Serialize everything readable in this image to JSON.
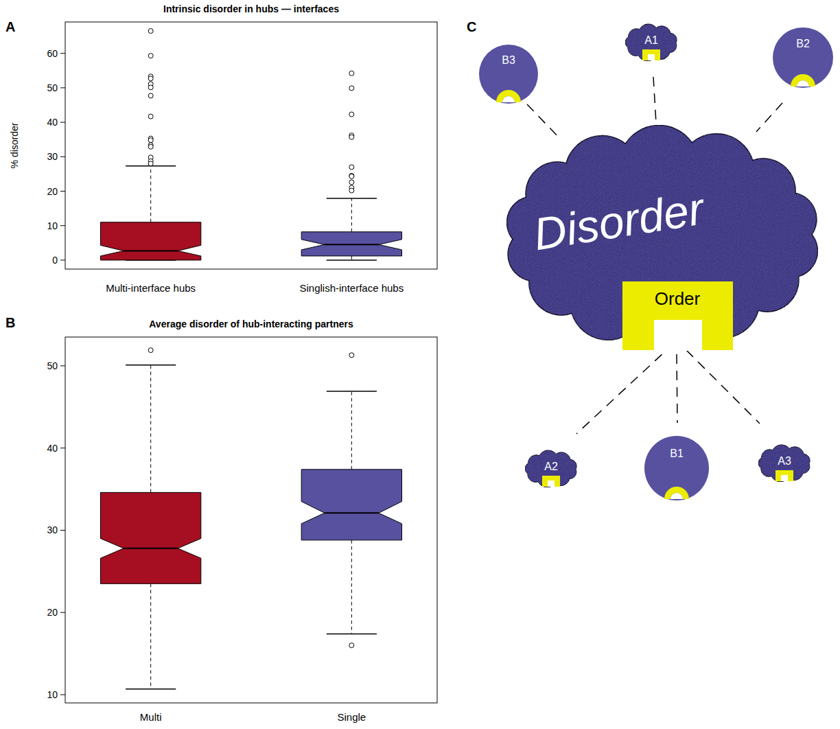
{
  "chart_data": [
    {
      "type": "box",
      "panel": "A",
      "title": "Intrinsic disorder in hubs — interfaces",
      "y_label": "% disorder",
      "categories": [
        "Multi-interface hubs",
        "Singlish-interface hubs"
      ],
      "colors": [
        "#a50f21",
        "#5751a0"
      ],
      "ylim": [
        -2.6,
        69.1
      ],
      "yticks": [
        0,
        10,
        20,
        30,
        40,
        50,
        60
      ],
      "boxes": [
        {
          "whisker_low": 0,
          "q1": 0,
          "notch_low": 1.2,
          "median": 2.7,
          "notch_high": 4.3,
          "q3": 11,
          "whisker_high": 27.3,
          "outliers": [
            66.5,
            59.3,
            53.3,
            52.7,
            51.1,
            50.1,
            47.7,
            41.7,
            35.3,
            34.8,
            33.4,
            32.9,
            29.8,
            28.7,
            28.0
          ]
        },
        {
          "whisker_low": 0,
          "q1": 1.2,
          "notch_low": 3.0,
          "median": 4.5,
          "notch_high": 6.0,
          "q3": 8.2,
          "whisker_high": 17.9,
          "outliers": [
            54.2,
            49.9,
            42.3,
            36.2,
            35.7,
            27.0,
            24.5,
            24.3,
            22.6,
            21.0,
            20.2
          ]
        }
      ]
    },
    {
      "type": "box",
      "panel": "B",
      "title": "Average disorder of hub-interacting partners",
      "categories": [
        "Multi",
        "Single"
      ],
      "colors": [
        "#a50f21",
        "#5751a0"
      ],
      "ylim": [
        9.0,
        53.5
      ],
      "yticks": [
        10,
        20,
        30,
        40,
        50
      ],
      "boxes": [
        {
          "whisker_low": 10.7,
          "q1": 23.5,
          "notch_low": 26.6,
          "median": 27.8,
          "notch_high": 29.0,
          "q3": 34.6,
          "whisker_high": 50.1,
          "outliers": [
            51.9
          ]
        },
        {
          "whisker_low": 17.4,
          "q1": 28.8,
          "notch_low": 30.8,
          "median": 32.1,
          "notch_high": 33.5,
          "q3": 37.4,
          "whisker_high": 46.9,
          "outliers": [
            51.3,
            16.0
          ]
        }
      ]
    }
  ],
  "diagram": {
    "panel": "C",
    "center": {
      "label": "Disorder",
      "core": "Order"
    },
    "nodes": [
      {
        "label": "B3",
        "shape": "circle"
      },
      {
        "label": "A1",
        "shape": "cloud"
      },
      {
        "label": "B2",
        "shape": "circle"
      },
      {
        "label": "A2",
        "shape": "cloud"
      },
      {
        "label": "B1",
        "shape": "circle"
      },
      {
        "label": "A3",
        "shape": "cloud"
      }
    ]
  }
}
